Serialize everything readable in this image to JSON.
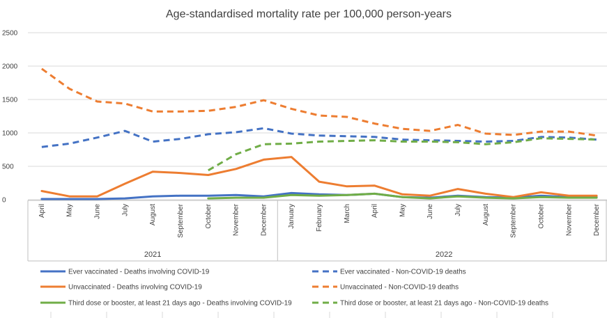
{
  "chart_data": {
    "type": "line",
    "title": "Age-standardised mortality rate per 100,000 person-years",
    "xlabel": "",
    "ylabel": "",
    "ylim": [
      0,
      2500
    ],
    "yticks": [
      0,
      500,
      1000,
      1500,
      2000,
      2500
    ],
    "categories": [
      "April",
      "May",
      "June",
      "July",
      "August",
      "September",
      "October",
      "November",
      "December",
      "January",
      "February",
      "March",
      "April",
      "May",
      "June",
      "July",
      "August",
      "September",
      "October",
      "November",
      "December"
    ],
    "year_groups": [
      {
        "label": "2021",
        "start": 0,
        "end": 8
      },
      {
        "label": "2022",
        "start": 9,
        "end": 20
      }
    ],
    "series": [
      {
        "name": "Ever vaccinated -  Deaths involving COVID-19",
        "color": "#4472C4",
        "dash": false,
        "values": [
          10,
          10,
          10,
          20,
          50,
          60,
          60,
          70,
          50,
          100,
          80,
          70,
          90,
          40,
          30,
          60,
          40,
          30,
          60,
          40,
          40
        ]
      },
      {
        "name": "Ever vaccinated -  Non-COVID-19 deaths",
        "color": "#4472C4",
        "dash": true,
        "values": [
          790,
          840,
          930,
          1030,
          870,
          910,
          980,
          1010,
          1070,
          990,
          960,
          950,
          940,
          900,
          890,
          880,
          870,
          880,
          940,
          930,
          900
        ]
      },
      {
        "name": "Unvaccinated -  Deaths involving COVID-19",
        "color": "#ED7D31",
        "dash": false,
        "values": [
          130,
          50,
          50,
          240,
          420,
          400,
          370,
          460,
          600,
          640,
          270,
          200,
          210,
          80,
          60,
          160,
          90,
          40,
          110,
          60,
          60
        ]
      },
      {
        "name": "Unvaccinated -  Non-COVID-19 deaths",
        "color": "#ED7D31",
        "dash": true,
        "values": [
          1960,
          1660,
          1470,
          1440,
          1320,
          1320,
          1330,
          1390,
          1490,
          1360,
          1260,
          1240,
          1140,
          1060,
          1030,
          1120,
          990,
          970,
          1020,
          1020,
          960
        ]
      },
      {
        "name": "Third dose or booster, at least 21 days ago - Deaths involving COVID-19",
        "color": "#70AD47",
        "dash": false,
        "values": [
          null,
          null,
          null,
          null,
          null,
          null,
          20,
          30,
          30,
          70,
          60,
          70,
          90,
          40,
          20,
          50,
          30,
          20,
          40,
          30,
          30
        ]
      },
      {
        "name": "Third dose or booster, at least 21 days ago - Non-COVID-19 deaths",
        "color": "#70AD47",
        "dash": true,
        "values": [
          null,
          null,
          null,
          null,
          null,
          null,
          440,
          680,
          830,
          840,
          870,
          880,
          890,
          870,
          870,
          860,
          830,
          860,
          920,
          910,
          900
        ]
      }
    ]
  }
}
